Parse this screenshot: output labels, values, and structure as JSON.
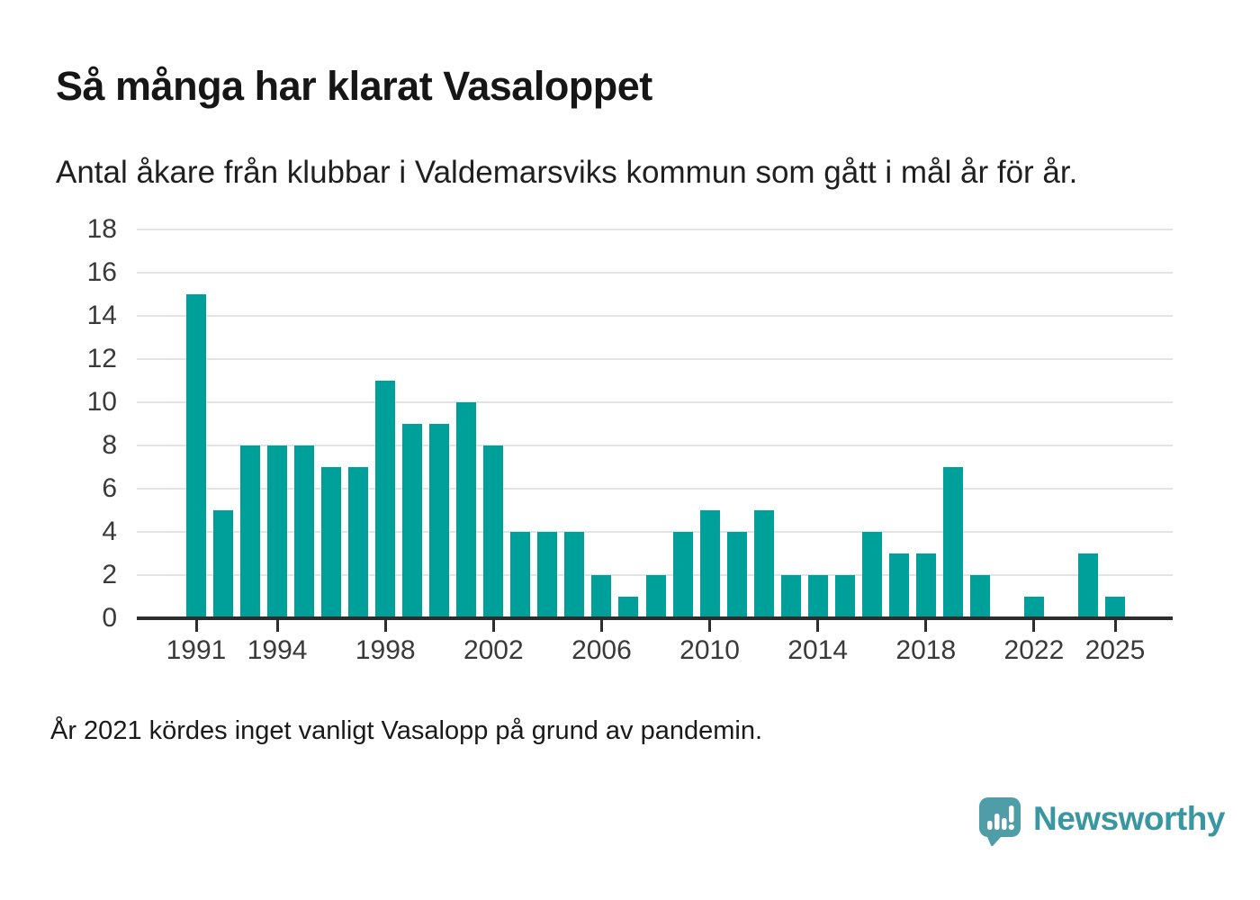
{
  "header": {
    "title": "Så många har klarat Vasaloppet",
    "subtitle": "Antal åkare från klubbar i Valdemarsviks kommun som gått i mål år för år."
  },
  "footnote": "År 2021 kördes inget vanligt Vasalopp på grund av pandemin.",
  "branding": {
    "wordmark": "Newsworthy",
    "icon": "newsworthy-speech-bubble-bar-chart-icon"
  },
  "colors": {
    "bar": "#00a09a",
    "grid": "#e3e3e3",
    "axis": "#2d2d2d",
    "tick_text": "#3a3a3a",
    "title_text": "#161616",
    "brand_text": "#3a96a0",
    "brand_icon": "#4f9ea7"
  },
  "chart_data": {
    "type": "bar",
    "title": "Så många har klarat Vasaloppet",
    "subtitle": "Antal åkare från klubbar i Valdemarsviks kommun som gått i mål år för år.",
    "xlabel": "",
    "ylabel": "",
    "x": [
      1991,
      1992,
      1993,
      1994,
      1995,
      1996,
      1997,
      1998,
      1999,
      2000,
      2001,
      2002,
      2003,
      2004,
      2005,
      2006,
      2007,
      2008,
      2009,
      2010,
      2011,
      2012,
      2013,
      2014,
      2015,
      2016,
      2017,
      2018,
      2019,
      2020,
      2021,
      2022,
      2023,
      2024,
      2025
    ],
    "values": [
      15,
      5,
      8,
      8,
      8,
      7,
      7,
      11,
      9,
      9,
      10,
      8,
      4,
      4,
      4,
      2,
      1,
      2,
      4,
      5,
      4,
      5,
      2,
      2,
      2,
      4,
      3,
      3,
      7,
      2,
      0,
      1,
      0,
      3,
      1
    ],
    "ylim": [
      0,
      18
    ],
    "yticks": [
      0,
      2,
      4,
      6,
      8,
      10,
      12,
      14,
      16,
      18
    ],
    "xticks": [
      1991,
      1994,
      1998,
      2002,
      2006,
      2010,
      2014,
      2018,
      2022,
      2025
    ],
    "grid": "horizontal",
    "legend": "none"
  }
}
